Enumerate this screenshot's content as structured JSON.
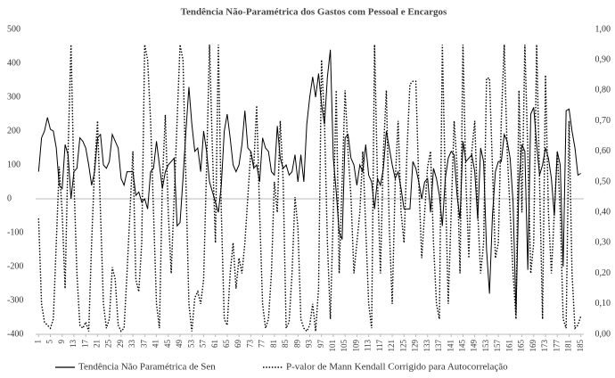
{
  "chart_data": {
    "type": "line",
    "title": "Tendência Não-Paramétrica dos Gastos com Pessoal e Encargos",
    "x": [
      1,
      2,
      3,
      4,
      5,
      6,
      7,
      8,
      9,
      10,
      11,
      12,
      13,
      14,
      15,
      16,
      17,
      18,
      19,
      20,
      21,
      22,
      23,
      24,
      25,
      26,
      27,
      28,
      29,
      30,
      31,
      32,
      33,
      34,
      35,
      36,
      37,
      38,
      39,
      40,
      41,
      42,
      43,
      44,
      45,
      46,
      47,
      48,
      49,
      50,
      51,
      52,
      53,
      54,
      55,
      56,
      57,
      58,
      59,
      60,
      61,
      62,
      63,
      64,
      65,
      66,
      67,
      68,
      69,
      70,
      71,
      72,
      73,
      74,
      75,
      76,
      77,
      78,
      79,
      80,
      81,
      82,
      83,
      84,
      85,
      86,
      87,
      88,
      89,
      90,
      91,
      92,
      93,
      94,
      95,
      96,
      97,
      98,
      99,
      100,
      101,
      102,
      103,
      104,
      105,
      106,
      107,
      108,
      109,
      110,
      111,
      112,
      113,
      114,
      115,
      116,
      117,
      118,
      119,
      120,
      121,
      122,
      123,
      124,
      125,
      126,
      127,
      128,
      129,
      130,
      131,
      132,
      133,
      134,
      135,
      136,
      137,
      138,
      139,
      140,
      141,
      142,
      143,
      144,
      145,
      146,
      147,
      148,
      149,
      150,
      151,
      152,
      153,
      154,
      155,
      156,
      157,
      158,
      159,
      160,
      161,
      162,
      163,
      164,
      165,
      166,
      167,
      168,
      169,
      170,
      171,
      172,
      173,
      174,
      175,
      176,
      177,
      178,
      179,
      180,
      181,
      182,
      183,
      184,
      185
    ],
    "xlim": [
      0,
      186
    ],
    "xticks": [
      1,
      5,
      9,
      13,
      17,
      21,
      25,
      29,
      33,
      37,
      41,
      45,
      49,
      53,
      57,
      61,
      65,
      69,
      73,
      77,
      81,
      85,
      89,
      93,
      97,
      101,
      105,
      109,
      113,
      117,
      121,
      125,
      129,
      133,
      137,
      141,
      145,
      149,
      153,
      157,
      161,
      165,
      169,
      173,
      177,
      181,
      185
    ],
    "ylim": [
      -400,
      500
    ],
    "yticks": [
      -400,
      -300,
      -200,
      -100,
      0,
      100,
      200,
      300,
      400,
      500
    ],
    "y2lim": [
      0,
      1
    ],
    "y2ticks": [
      {
        "value": 0,
        "label": "0,00"
      },
      {
        "value": 0.1,
        "label": "0,10"
      },
      {
        "value": 0.2,
        "label": "0,20"
      },
      {
        "value": 0.3,
        "label": "0,30"
      },
      {
        "value": 0.4,
        "label": "0,40"
      },
      {
        "value": 0.5,
        "label": "0,50"
      },
      {
        "value": 0.6,
        "label": "0,60"
      },
      {
        "value": 0.7,
        "label": "0,70"
      },
      {
        "value": 0.8,
        "label": "0,80"
      },
      {
        "value": 0.9,
        "label": "0,90"
      },
      {
        "value": 1,
        "label": "1,00"
      }
    ],
    "legend": "bottom",
    "series": [
      {
        "name": "Tendência Não Paramétrica de Sen",
        "color": "#000000",
        "dash": "solid",
        "axis": "y",
        "values": [
          80,
          180,
          200,
          240,
          205,
          200,
          150,
          40,
          30,
          160,
          130,
          0,
          80,
          90,
          180,
          170,
          150,
          100,
          40,
          80,
          180,
          190,
          100,
          90,
          110,
          190,
          170,
          150,
          60,
          40,
          80,
          80,
          80,
          10,
          20,
          -10,
          0,
          -30,
          80,
          90,
          170,
          100,
          30,
          80,
          100,
          110,
          120,
          -80,
          -70,
          60,
          200,
          330,
          220,
          140,
          150,
          80,
          200,
          140,
          50,
          20,
          -10,
          -40,
          40,
          200,
          250,
          180,
          100,
          80,
          100,
          160,
          260,
          150,
          140,
          90,
          100,
          50,
          180,
          150,
          140,
          80,
          70,
          215,
          120,
          90,
          100,
          70,
          80,
          130,
          50,
          130,
          50,
          220,
          300,
          360,
          300,
          370,
          280,
          220,
          360,
          440,
          120,
          20,
          -100,
          -120,
          180,
          190,
          120,
          100,
          40,
          100,
          80,
          160,
          70,
          50,
          -30,
          60,
          40,
          90,
          200,
          150,
          100,
          60,
          80,
          30,
          -30,
          -30,
          -30,
          110,
          90,
          50,
          0,
          50,
          60,
          -40,
          90,
          60,
          10,
          -80,
          60,
          120,
          140,
          130,
          10,
          -60,
          170,
          110,
          120,
          130,
          80,
          -60,
          150,
          110,
          -150,
          -280,
          -50,
          80,
          110,
          110,
          190,
          170,
          120,
          -10,
          -340,
          50,
          160,
          140,
          -210,
          250,
          270,
          160,
          70,
          100,
          150,
          120,
          60,
          -50,
          140,
          100,
          -200,
          260,
          265,
          200,
          150,
          70,
          75
        ]
      },
      {
        "name": "P-valor de Mann Kendall Corrigido para Autocorrelação",
        "color": "#000000",
        "dash": "dotted",
        "axis": "y2",
        "values": [
          0.38,
          0.1,
          0.04,
          0.03,
          0.02,
          0.05,
          0.3,
          0.55,
          0.4,
          0.15,
          0.6,
          0.95,
          0.5,
          0.2,
          0.03,
          0.02,
          0.04,
          0.01,
          0.3,
          0.55,
          0.7,
          0.4,
          0.1,
          0.02,
          0.05,
          0.22,
          0.18,
          0.03,
          0.01,
          0.02,
          0.2,
          0.4,
          0.6,
          0.18,
          0.14,
          0.3,
          0.95,
          0.9,
          0.7,
          0.4,
          0.1,
          0.02,
          0.5,
          0.72,
          0.4,
          0.2,
          0.45,
          0.7,
          0.95,
          0.9,
          0.5,
          0.1,
          0.01,
          0.12,
          0.14,
          0.1,
          0.18,
          0.55,
          0.95,
          0.6,
          0.3,
          0.95,
          0.4,
          0.05,
          0.03,
          0.2,
          0.3,
          0.15,
          0.25,
          0.2,
          0.3,
          0.45,
          0.6,
          0.55,
          0.75,
          0.4,
          0.1,
          0.02,
          0.05,
          0.2,
          0.5,
          0.4,
          0.7,
          0.5,
          0.02,
          0.04,
          0.2,
          0.45,
          0.35,
          0.05,
          0.02,
          0.01,
          0.03,
          0.1,
          0.01,
          0.15,
          0.9,
          0.7,
          0.3,
          0.05,
          0.4,
          0.8,
          0.2,
          0.5,
          0.8,
          0.6,
          0.45,
          0.2,
          0.3,
          0.4,
          0.6,
          0.35,
          0.1,
          0.02,
          0.95,
          0.5,
          0.2,
          0.6,
          0.8,
          0.35,
          0.1,
          0.5,
          0.7,
          0.4,
          0.3,
          0.6,
          0.82,
          0.83,
          0.83,
          0.5,
          0.25,
          0.4,
          0.55,
          0.6,
          0.3,
          0.1,
          0.05,
          0.95,
          0.5,
          0.1,
          0.4,
          0.7,
          0.55,
          0.2,
          0.95,
          0.5,
          0.25,
          0.6,
          0.7,
          0.4,
          0.2,
          0.3,
          0.84,
          0.84,
          0.55,
          0.25,
          0.3,
          0.7,
          0.95,
          0.6,
          0.4,
          0.2,
          0.05,
          0.8,
          0.4,
          0.95,
          0.6,
          0.2,
          0.3,
          0.95,
          0.5,
          0.05,
          0.85,
          0.4,
          0.2,
          0.4,
          0.6,
          0.4,
          0.05,
          0.02,
          0.7,
          0.2,
          0.02,
          0.03,
          0.06
        ]
      }
    ]
  }
}
